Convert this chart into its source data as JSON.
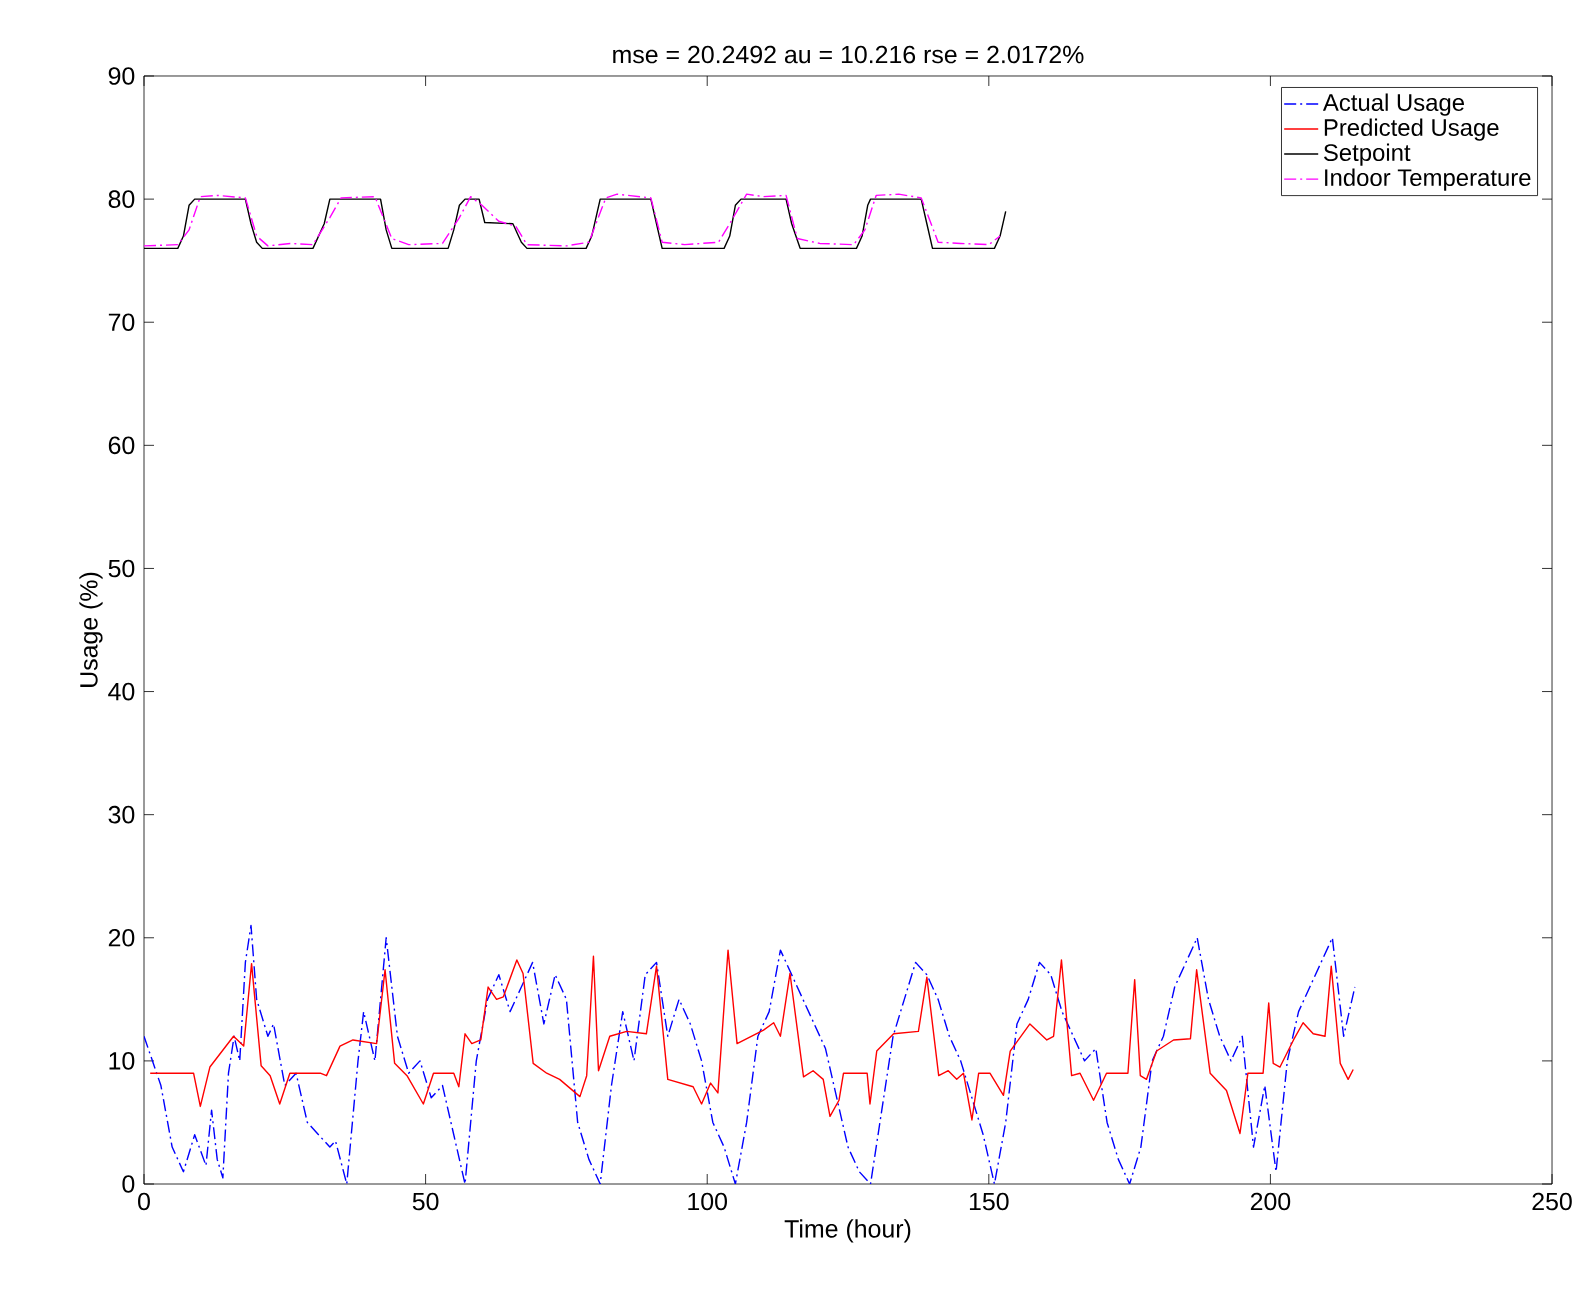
{
  "chart_data": {
    "type": "line",
    "title": "mse = 20.2492 au = 10.216 rse = 2.0172%",
    "xlabel": "Time (hour)",
    "ylabel": "Usage (%)",
    "xlim": [
      0,
      250
    ],
    "ylim": [
      0,
      90
    ],
    "xticks": [
      0,
      50,
      100,
      150,
      200,
      250
    ],
    "yticks": [
      0,
      10,
      20,
      30,
      40,
      50,
      60,
      70,
      80,
      90
    ],
    "grid": false,
    "legend": "top right",
    "series": [
      {
        "name": "Actual Usage",
        "color": "#0000ff",
        "line_style": "dashdot",
        "x": [
          0,
          3,
          5,
          7,
          9,
          11,
          12,
          13,
          14,
          15,
          16,
          17,
          18,
          19,
          20,
          22,
          23,
          25,
          27,
          29,
          31,
          33,
          34,
          36,
          38,
          39,
          41,
          42,
          43,
          45,
          47,
          49,
          51,
          53,
          55,
          57,
          59,
          61,
          63,
          65,
          67,
          69,
          71,
          73,
          75,
          77,
          79,
          81,
          83,
          85,
          87,
          89,
          91,
          93,
          95,
          97,
          99,
          101,
          103,
          105,
          107,
          109,
          111,
          113,
          115,
          117,
          119,
          121,
          123,
          125,
          127,
          129,
          131,
          133,
          135,
          137,
          139,
          141,
          143,
          145,
          147,
          149,
          151,
          153,
          155,
          157,
          159,
          161,
          163,
          165,
          167,
          169,
          171,
          173,
          175,
          177,
          179,
          181,
          183,
          185,
          187,
          189,
          191,
          193,
          195,
          197,
          199,
          201,
          203,
          205,
          207,
          209,
          211,
          213,
          215
        ],
        "values": [
          12,
          8,
          3,
          1,
          4,
          1.5,
          6,
          2,
          0.5,
          9,
          12,
          10,
          18,
          21,
          15,
          12,
          13,
          8,
          9,
          5,
          4,
          3,
          3.5,
          0,
          10,
          14,
          10,
          15,
          20,
          12,
          9,
          10,
          7,
          8,
          4,
          0,
          10,
          15,
          17,
          14,
          16,
          18,
          13,
          17,
          15,
          5,
          2,
          0,
          8,
          14,
          10,
          17,
          18,
          12,
          15,
          13,
          10,
          5,
          3,
          0,
          5,
          12,
          14,
          19,
          17,
          15,
          13,
          11,
          7,
          3,
          1,
          0,
          6,
          12,
          15,
          18,
          17,
          15,
          12,
          10,
          7,
          4,
          0,
          5,
          13,
          15,
          18,
          17,
          14,
          12,
          10,
          11,
          5,
          2,
          0,
          3,
          10,
          12,
          16,
          18,
          20,
          15,
          12,
          10,
          12,
          3,
          8,
          1,
          10,
          14,
          16,
          18,
          20,
          12,
          16
        ]
      },
      {
        "name": "Predicted Usage",
        "color": "#ff0000",
        "line_style": "solid",
        "x": [
          1.1,
          8.8,
          10,
          11.7,
          15.9,
          17.7,
          19.1,
          20.8,
          22.4,
          24.1,
          25.9,
          31.3,
          32.4,
          34.8,
          37.1,
          41.3,
          42.8,
          44.5,
          46.7,
          49.6,
          51.4,
          55,
          55.9,
          57,
          58.2,
          59.8,
          61.1,
          62.6,
          63.8,
          66.2,
          67.3,
          69.1,
          71.5,
          73.8,
          77.4,
          78.6,
          79.8,
          80.7,
          82.7,
          85.7,
          89.2,
          91,
          93,
          97.5,
          99,
          100.6,
          101.9,
          103.7,
          105.3,
          110,
          111.8,
          113,
          114.7,
          117.1,
          118.8,
          120.6,
          121.8,
          123.4,
          124.2,
          128.4,
          128.9,
          130.1,
          133.1,
          137.5,
          139,
          141.1,
          142.8,
          144.3,
          145.5,
          147,
          148.2,
          150.2,
          152.6,
          153.8,
          157.3,
          160.3,
          161.5,
          162.9,
          164.7,
          166.2,
          168.6,
          170.9,
          174.7,
          175.9,
          176.9,
          178,
          179.8,
          182.8,
          185.8,
          186.9,
          189.3,
          192.2,
          194.6,
          196,
          198.7,
          199.7,
          200.5,
          201.7,
          204.1,
          205.8,
          207.6,
          209.7,
          210.8,
          212.4,
          213.8,
          214.7
        ],
        "values": [
          9,
          9,
          6.3,
          9.5,
          12,
          11.2,
          17.9,
          9.6,
          8.8,
          6.5,
          9,
          9,
          8.8,
          11.2,
          11.7,
          11.4,
          17.4,
          9.8,
          8.8,
          6.5,
          9,
          9,
          7.9,
          12.2,
          11.4,
          11.7,
          16,
          15,
          15.2,
          18.2,
          17.1,
          9.8,
          9,
          8.5,
          7.1,
          8.8,
          18.5,
          9.2,
          12,
          12.4,
          12.2,
          17.7,
          8.5,
          7.9,
          6.5,
          8.2,
          7.4,
          19,
          11.4,
          12.5,
          13.1,
          12,
          17.1,
          8.7,
          9.2,
          8.5,
          5.5,
          6.8,
          9,
          9,
          6.5,
          10.8,
          12.2,
          12.4,
          16.8,
          8.8,
          9.2,
          8.5,
          9,
          5.2,
          9,
          9,
          7.2,
          10.8,
          13,
          11.7,
          12,
          18.2,
          8.8,
          9,
          6.8,
          9,
          9,
          16.6,
          8.8,
          8.5,
          10.8,
          11.7,
          11.8,
          17.4,
          9,
          7.6,
          4.1,
          9,
          9,
          14.7,
          9.8,
          9.5,
          11.7,
          13.1,
          12.2,
          12,
          17.7,
          9.8,
          8.5,
          9.3
        ]
      },
      {
        "name": "Setpoint",
        "color": "#000000",
        "line_style": "solid",
        "x": [
          0,
          6,
          7,
          8,
          9,
          18,
          19,
          20,
          21,
          30,
          31,
          32,
          33,
          42,
          43,
          44,
          54,
          55,
          56,
          57,
          59.5,
          60.5,
          65.5,
          67,
          68,
          78.5,
          79.5,
          81,
          90,
          91,
          92,
          103,
          104,
          105,
          106,
          114,
          115,
          116.5,
          126.5,
          127.5,
          128.5,
          129,
          138,
          139,
          140,
          151,
          152,
          153
        ],
        "values": [
          76,
          76,
          77,
          79.5,
          80,
          80,
          78,
          76.5,
          76,
          76,
          77,
          78,
          80,
          80,
          77.5,
          76,
          76,
          77.5,
          79.5,
          80,
          80,
          78.1,
          78,
          76.5,
          76,
          76,
          77,
          80,
          80,
          78,
          76,
          76,
          77,
          79.5,
          80,
          80,
          78,
          76,
          76,
          77,
          79.5,
          80,
          80,
          78,
          76,
          76,
          77,
          79
        ]
      },
      {
        "name": "Indoor Temperature",
        "color": "#ff00ff",
        "line_style": "dashdot",
        "x": [
          0,
          6,
          8,
          10,
          13,
          18,
          20,
          22,
          26,
          30,
          33,
          35,
          41,
          44,
          47,
          53,
          56,
          58,
          60,
          63,
          66,
          68,
          75,
          79,
          82,
          84,
          90,
          92,
          96,
          102,
          104,
          107,
          110,
          114,
          116,
          120,
          126,
          128,
          130,
          134,
          138,
          141,
          145,
          150,
          152
        ],
        "values": [
          76.2,
          76.3,
          77.5,
          80.2,
          80.3,
          80.1,
          77,
          76.2,
          76.4,
          76.3,
          78.5,
          80.1,
          80.2,
          76.8,
          76.3,
          76.4,
          78.5,
          80.2,
          79.5,
          78.2,
          77.8,
          76.3,
          76.2,
          76.5,
          80.1,
          80.4,
          80.1,
          76.5,
          76.3,
          76.5,
          78,
          80.4,
          80.2,
          80.3,
          76.8,
          76.4,
          76.3,
          77.5,
          80.3,
          80.4,
          80.1,
          76.5,
          76.4,
          76.3,
          77
        ]
      }
    ]
  }
}
